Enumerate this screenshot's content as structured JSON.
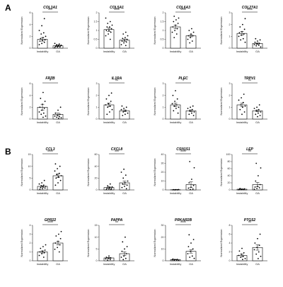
{
  "figure": {
    "panel_letters": [
      "A",
      "B"
    ],
    "colors": {
      "axis": "#000000",
      "point": "#000000",
      "bar_fill": "#ffffff",
      "bar_stroke": "#000000"
    }
  },
  "chart_data": [
    {
      "panel": "A",
      "type": "bar",
      "title": "COL3A1",
      "ylabel": "Normalized Expression",
      "categories": [
        "Instability",
        "OA"
      ],
      "values": [
        1.5,
        0.4
      ],
      "sem": [
        0.3,
        0.1
      ],
      "significance": "***",
      "ylim": [
        0,
        6
      ],
      "yticks": [
        0,
        2,
        4,
        6
      ],
      "points": [
        [
          0.6,
          0.8,
          1.0,
          1.2,
          1.3,
          1.4,
          1.6,
          1.8,
          2.0,
          2.4,
          2.6,
          3.0,
          3.8,
          5.0
        ],
        [
          0.1,
          0.2,
          0.2,
          0.3,
          0.3,
          0.4,
          0.4,
          0.5,
          0.5,
          0.6,
          0.7,
          0.8
        ]
      ]
    },
    {
      "panel": "A",
      "type": "bar",
      "title": "COL5A1",
      "ylabel": "Normalized Expression",
      "categories": [
        "Instability",
        "OA"
      ],
      "values": [
        1.05,
        0.45
      ],
      "sem": [
        0.1,
        0.07
      ],
      "significance": "****",
      "ylim": [
        0,
        2.0
      ],
      "yticks": [
        0.0,
        0.5,
        1.0,
        1.5,
        2.0
      ],
      "points": [
        [
          0.5,
          0.7,
          0.8,
          0.9,
          1.0,
          1.0,
          1.1,
          1.2,
          1.2,
          1.3,
          1.4,
          1.5,
          1.7
        ],
        [
          0.15,
          0.2,
          0.3,
          0.35,
          0.4,
          0.45,
          0.5,
          0.55,
          0.6,
          0.7,
          0.8,
          0.9
        ]
      ]
    },
    {
      "panel": "A",
      "type": "bar",
      "title": "COL6A3",
      "ylabel": "Normalized Expression",
      "categories": [
        "Instability",
        "OA"
      ],
      "values": [
        1.2,
        0.7
      ],
      "sem": [
        0.1,
        0.06
      ],
      "significance": "****",
      "ylim": [
        0,
        2.0
      ],
      "yticks": [
        0.0,
        0.5,
        1.0,
        1.5,
        2.0
      ],
      "points": [
        [
          0.6,
          0.8,
          0.9,
          1.0,
          1.1,
          1.2,
          1.3,
          1.4,
          1.5,
          1.6,
          1.7,
          1.8
        ],
        [
          0.3,
          0.4,
          0.5,
          0.6,
          0.7,
          0.7,
          0.8,
          0.9,
          1.0,
          1.1
        ]
      ]
    },
    {
      "panel": "A",
      "type": "bar",
      "title": "COL27A1",
      "ylabel": "Normalized Expression",
      "categories": [
        "Instability",
        "OA"
      ],
      "values": [
        1.25,
        0.4
      ],
      "sem": [
        0.15,
        0.06
      ],
      "significance": "****",
      "ylim": [
        0,
        3
      ],
      "yticks": [
        0,
        1,
        2,
        3
      ],
      "points": [
        [
          0.5,
          0.7,
          0.8,
          1.0,
          1.1,
          1.2,
          1.3,
          1.4,
          1.6,
          1.8,
          2.0,
          2.5
        ],
        [
          0.1,
          0.2,
          0.25,
          0.3,
          0.35,
          0.4,
          0.5,
          0.6,
          0.7,
          0.8
        ]
      ]
    },
    {
      "panel": "A",
      "type": "bar",
      "title": "FRZB",
      "ylabel": "Normalized Expression",
      "categories": [
        "Instability",
        "OA"
      ],
      "values": [
        2.0,
        0.8
      ],
      "sem": [
        0.5,
        0.2
      ],
      "significance": "*",
      "ylim": [
        0,
        6
      ],
      "yticks": [
        0,
        2,
        4,
        6
      ],
      "points": [
        [
          0.3,
          0.5,
          0.8,
          1.0,
          1.2,
          1.5,
          1.8,
          2.0,
          2.5,
          3.0,
          3.5,
          4.5
        ],
        [
          0.1,
          0.2,
          0.3,
          0.4,
          0.5,
          0.6,
          0.8,
          1.0,
          1.5,
          2.0
        ]
      ]
    },
    {
      "panel": "A",
      "type": "bar",
      "title": "IL1RA",
      "ylabel": "Normalized Expression",
      "categories": [
        "Instability",
        "OA"
      ],
      "values": [
        1.2,
        0.7
      ],
      "sem": [
        0.15,
        0.08
      ],
      "significance": "**",
      "ylim": [
        0,
        3
      ],
      "yticks": [
        0,
        1,
        2,
        3
      ],
      "points": [
        [
          0.4,
          0.6,
          0.8,
          1.0,
          1.1,
          1.2,
          1.3,
          1.5,
          1.7,
          2.0,
          2.2
        ],
        [
          0.3,
          0.4,
          0.5,
          0.6,
          0.7,
          0.8,
          0.9,
          1.0,
          1.1
        ]
      ]
    },
    {
      "panel": "A",
      "type": "bar",
      "title": "PLEC",
      "ylabel": "Normalized Expression",
      "categories": [
        "Instability",
        "OA"
      ],
      "values": [
        1.2,
        0.7
      ],
      "sem": [
        0.15,
        0.08
      ],
      "significance": "*",
      "ylim": [
        0,
        3
      ],
      "yticks": [
        0,
        1,
        2,
        3
      ],
      "points": [
        [
          0.5,
          0.7,
          0.9,
          1.0,
          1.1,
          1.2,
          1.3,
          1.5,
          1.7,
          2.0,
          2.4
        ],
        [
          0.3,
          0.4,
          0.5,
          0.6,
          0.7,
          0.8,
          0.9,
          1.0,
          1.1
        ]
      ]
    },
    {
      "panel": "A",
      "type": "bar",
      "title": "TRPV1",
      "ylabel": "Normalized Expression",
      "categories": [
        "Instability",
        "OA"
      ],
      "values": [
        1.2,
        0.7
      ],
      "sem": [
        0.15,
        0.08
      ],
      "significance": "**",
      "ylim": [
        0,
        3
      ],
      "yticks": [
        0,
        1,
        2,
        3
      ],
      "points": [
        [
          0.4,
          0.6,
          0.8,
          1.0,
          1.1,
          1.2,
          1.4,
          1.6,
          1.8,
          2.1
        ],
        [
          0.2,
          0.3,
          0.4,
          0.5,
          0.6,
          0.7,
          0.8,
          0.9,
          1.0,
          1.2
        ]
      ]
    },
    {
      "panel": "B",
      "type": "bar",
      "title": "CCL3",
      "ylabel": "Normalized Expression",
      "categories": [
        "Instability",
        "OA"
      ],
      "values": [
        1.5,
        6.0
      ],
      "sem": [
        0.3,
        0.8
      ],
      "significance": "****",
      "ylim": [
        0,
        15
      ],
      "yticks": [
        0,
        5,
        10,
        15
      ],
      "points": [
        [
          0.3,
          0.5,
          0.8,
          1.0,
          1.2,
          1.5,
          1.8,
          2.0,
          2.5,
          3.0,
          4.0
        ],
        [
          2.0,
          3.0,
          4.0,
          5.0,
          5.5,
          6.0,
          6.5,
          7.0,
          8.0,
          9.0,
          10.0,
          11.0
        ]
      ]
    },
    {
      "panel": "B",
      "type": "bar",
      "title": "CXCL8",
      "ylabel": "Normalized Expression",
      "categories": [
        "Instability",
        "OA"
      ],
      "values": [
        4,
        12
      ],
      "sem": [
        1.5,
        3
      ],
      "significance": "***",
      "ylim": [
        0,
        60
      ],
      "yticks": [
        0,
        20,
        40,
        60
      ],
      "points": [
        [
          0.5,
          1,
          1.5,
          2,
          3,
          4,
          5,
          7,
          10
        ],
        [
          2,
          4,
          6,
          8,
          10,
          12,
          15,
          20,
          25,
          30,
          35
        ]
      ]
    },
    {
      "panel": "B",
      "type": "bar",
      "title": "CSN1S1",
      "ylabel": "Normalized Expression",
      "categories": [
        "Instability",
        "OA"
      ],
      "values": [
        0.2,
        6
      ],
      "sem": [
        0.1,
        3
      ],
      "significance": "****",
      "ylim": [
        0,
        40
      ],
      "yticks": [
        0,
        10,
        20,
        30,
        40
      ],
      "points": [
        [
          0.05,
          0.1,
          0.1,
          0.2,
          0.2,
          0.3,
          0.3,
          0.4
        ],
        [
          0.5,
          1,
          2,
          3,
          5,
          8,
          12,
          25,
          32
        ]
      ]
    },
    {
      "panel": "B",
      "type": "bar",
      "title": "LEP",
      "ylabel": "Normalized Expression",
      "categories": [
        "Instability",
        "OA"
      ],
      "values": [
        2,
        15
      ],
      "sem": [
        1,
        6
      ],
      "significance": "**",
      "ylim": [
        0,
        100
      ],
      "yticks": [
        0,
        20,
        40,
        60,
        80,
        100
      ],
      "points": [
        [
          0.5,
          1,
          1,
          2,
          2,
          3,
          4
        ],
        [
          2,
          4,
          6,
          8,
          10,
          15,
          25,
          40,
          62,
          75
        ]
      ]
    },
    {
      "panel": "B",
      "type": "bar",
      "title": "GPR22",
      "ylabel": "Normalized Expression",
      "categories": [
        "Instability",
        "OA"
      ],
      "values": [
        1.0,
        2.0
      ],
      "sem": [
        0.12,
        0.2
      ],
      "significance": "****",
      "ylim": [
        0,
        4
      ],
      "yticks": [
        0,
        1,
        2,
        3,
        4
      ],
      "points": [
        [
          0.4,
          0.6,
          0.8,
          0.9,
          1.0,
          1.1,
          1.2,
          1.4,
          1.6,
          1.8
        ],
        [
          1.0,
          1.3,
          1.5,
          1.8,
          2.0,
          2.2,
          2.5,
          2.8,
          3.0,
          3.3
        ]
      ]
    },
    {
      "panel": "B",
      "type": "bar",
      "title": "PAPPA",
      "ylabel": "Normalized Expression",
      "categories": [
        "Instability",
        "OA"
      ],
      "values": [
        1.2,
        3.0
      ],
      "sem": [
        0.2,
        0.8
      ],
      "significance": "**",
      "ylim": [
        0,
        15
      ],
      "yticks": [
        0,
        5,
        10,
        15
      ],
      "points": [
        [
          0.3,
          0.5,
          0.8,
          1.0,
          1.2,
          1.5,
          2.0
        ],
        [
          0.5,
          1,
          1.5,
          2,
          3,
          4,
          5,
          6,
          8,
          10
        ]
      ]
    },
    {
      "panel": "B",
      "type": "bar",
      "title": "PRKAR2B",
      "ylabel": "Normalized Expression",
      "categories": [
        "Instability",
        "OA"
      ],
      "values": [
        1.0,
        8.0
      ],
      "sem": [
        0.2,
        1.5
      ],
      "significance": "****",
      "ylim": [
        0,
        30
      ],
      "yticks": [
        0,
        10,
        20,
        30
      ],
      "points": [
        [
          0.3,
          0.5,
          0.6,
          0.8,
          1.0,
          1.2,
          1.5
        ],
        [
          2,
          3,
          4,
          6,
          8,
          10,
          12,
          15,
          18,
          22
        ]
      ]
    },
    {
      "panel": "B",
      "type": "bar",
      "title": "PTGS2",
      "ylabel": "Normalized Expression",
      "categories": [
        "Instability",
        "OA"
      ],
      "values": [
        1.2,
        3.0
      ],
      "sem": [
        0.3,
        0.6
      ],
      "significance": "**",
      "ylim": [
        0,
        8
      ],
      "yticks": [
        0,
        2,
        4,
        6,
        8
      ],
      "points": [
        [
          0.3,
          0.5,
          0.8,
          1.0,
          1.2,
          1.5,
          1.8,
          2.2,
          2.8
        ],
        [
          0.5,
          1,
          1.5,
          2,
          2.5,
          3,
          3.5,
          4,
          5,
          6
        ]
      ]
    }
  ]
}
